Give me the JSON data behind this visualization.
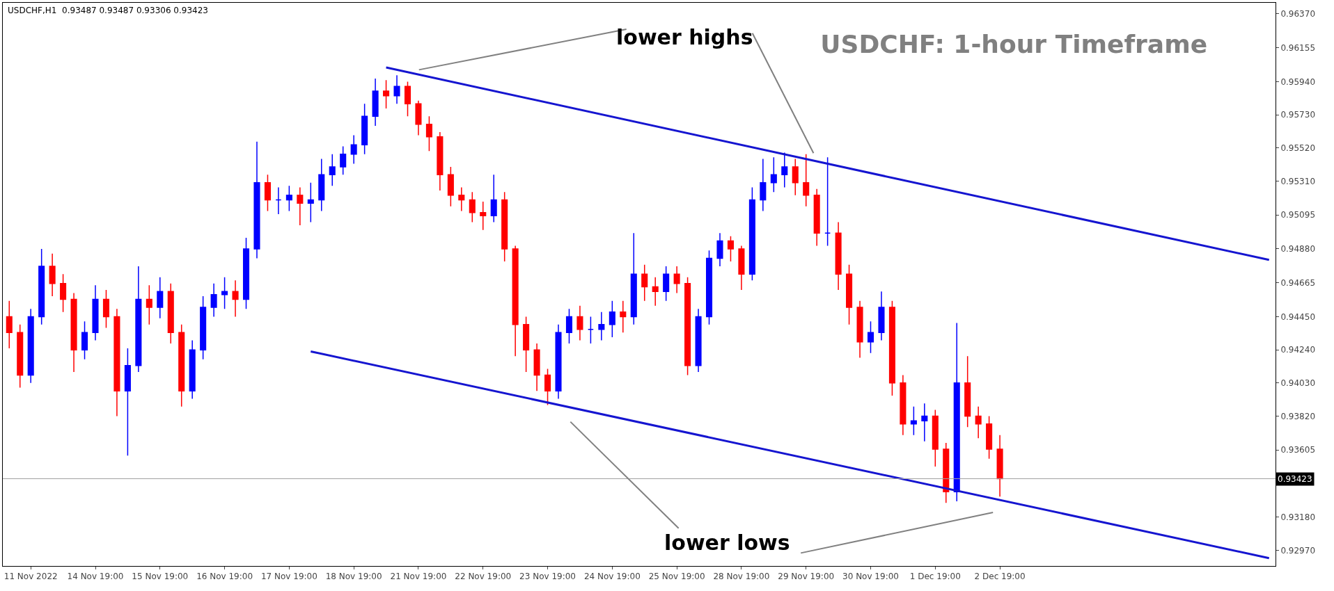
{
  "chart_data": {
    "type": "candlestick",
    "title": "USDCHF: 1-hour Timeframe",
    "subtitle": "USDCHF,H1  0.93487 0.93487 0.93306 0.93423",
    "annotations": [
      "lower highs",
      "lower lows"
    ],
    "categories": [
      null,
      null,
      "11 Nov 2022",
      null,
      null,
      null,
      null,
      null,
      "14 Nov 19:00",
      null,
      null,
      null,
      null,
      null,
      "15 Nov 19:00",
      null,
      null,
      null,
      null,
      null,
      "16 Nov 19:00",
      null,
      null,
      null,
      null,
      null,
      "17 Nov 19:00",
      null,
      null,
      null,
      null,
      null,
      "18 Nov 19:00",
      null,
      null,
      null,
      null,
      null,
      "21 Nov 19:00",
      null,
      null,
      null,
      null,
      null,
      "22 Nov 19:00",
      null,
      null,
      null,
      null,
      null,
      "23 Nov 19:00",
      null,
      null,
      null,
      null,
      null,
      "24 Nov 19:00",
      null,
      null,
      null,
      null,
      null,
      "25 Nov 19:00",
      null,
      null,
      null,
      null,
      null,
      "28 Nov 19:00",
      null,
      null,
      null,
      null,
      null,
      "29 Nov 19:00",
      null,
      null,
      null,
      null,
      null,
      "30 Nov 19:00",
      null,
      null,
      null,
      null,
      null,
      "1 Dec 19:00",
      null,
      null,
      null,
      null,
      null,
      "2 Dec 19:00",
      null,
      null,
      null,
      null,
      null,
      null,
      null,
      null,
      null,
      null,
      null,
      null,
      null,
      null,
      null,
      null,
      null,
      null,
      null,
      null,
      null,
      null,
      null,
      null,
      null
    ],
    "ohlc": [
      [
        0.9445,
        0.9455,
        0.9425,
        0.9435
      ],
      [
        0.9435,
        0.944,
        0.94,
        0.9408
      ],
      [
        0.9408,
        0.945,
        0.9403,
        0.9445
      ],
      [
        0.9445,
        0.9488,
        0.944,
        0.9477
      ],
      [
        0.9477,
        0.9485,
        0.9458,
        0.9466
      ],
      [
        0.9466,
        0.9472,
        0.9448,
        0.9456
      ],
      [
        0.9456,
        0.946,
        0.941,
        0.9424
      ],
      [
        0.9424,
        0.9442,
        0.9418,
        0.9435
      ],
      [
        0.9435,
        0.9465,
        0.943,
        0.9456
      ],
      [
        0.9456,
        0.9462,
        0.9438,
        0.9445
      ],
      [
        0.9445,
        0.945,
        0.9382,
        0.9398
      ],
      [
        0.9398,
        0.9425,
        0.9357,
        0.9414
      ],
      [
        0.9414,
        0.9477,
        0.941,
        0.9456
      ],
      [
        0.9456,
        0.9465,
        0.944,
        0.9451
      ],
      [
        0.9451,
        0.947,
        0.9444,
        0.9461
      ],
      [
        0.9461,
        0.9466,
        0.9428,
        0.9435
      ],
      [
        0.9435,
        0.944,
        0.9388,
        0.9398
      ],
      [
        0.9398,
        0.943,
        0.9393,
        0.9424
      ],
      [
        0.9424,
        0.9458,
        0.9418,
        0.9451
      ],
      [
        0.9451,
        0.9466,
        0.9445,
        0.9459
      ],
      [
        0.9459,
        0.947,
        0.945,
        0.9461
      ],
      [
        0.9461,
        0.9468,
        0.9445,
        0.9456
      ],
      [
        0.9456,
        0.9495,
        0.945,
        0.9488
      ],
      [
        0.9488,
        0.9556,
        0.9482,
        0.953
      ],
      [
        0.953,
        0.9535,
        0.9512,
        0.9519
      ],
      [
        0.9519,
        0.9527,
        0.951,
        0.9519
      ],
      [
        0.9519,
        0.9528,
        0.9512,
        0.9522
      ],
      [
        0.9522,
        0.9527,
        0.9503,
        0.9517
      ],
      [
        0.9517,
        0.953,
        0.9505,
        0.9519
      ],
      [
        0.9519,
        0.9545,
        0.9512,
        0.9535
      ],
      [
        0.9535,
        0.9548,
        0.9528,
        0.954
      ],
      [
        0.954,
        0.9553,
        0.9535,
        0.9548
      ],
      [
        0.9548,
        0.956,
        0.9542,
        0.9554
      ],
      [
        0.9554,
        0.958,
        0.9548,
        0.9572
      ],
      [
        0.9572,
        0.9596,
        0.9566,
        0.9588
      ],
      [
        0.9588,
        0.9595,
        0.9577,
        0.9585
      ],
      [
        0.9585,
        0.9598,
        0.958,
        0.9591
      ],
      [
        0.9591,
        0.9594,
        0.9572,
        0.958
      ],
      [
        0.958,
        0.9582,
        0.956,
        0.9567
      ],
      [
        0.9567,
        0.9572,
        0.955,
        0.9559
      ],
      [
        0.9559,
        0.9562,
        0.9525,
        0.9535
      ],
      [
        0.9535,
        0.954,
        0.9515,
        0.9522
      ],
      [
        0.9522,
        0.9527,
        0.9512,
        0.9519
      ],
      [
        0.9519,
        0.9524,
        0.9505,
        0.9511
      ],
      [
        0.9511,
        0.9518,
        0.95,
        0.9509
      ],
      [
        0.9509,
        0.9535,
        0.9505,
        0.9519
      ],
      [
        0.9519,
        0.9524,
        0.948,
        0.9488
      ],
      [
        0.9488,
        0.949,
        0.942,
        0.944
      ],
      [
        0.944,
        0.9445,
        0.941,
        0.9424
      ],
      [
        0.9424,
        0.9428,
        0.9398,
        0.9408
      ],
      [
        0.9408,
        0.9412,
        0.9389,
        0.9398
      ],
      [
        0.9398,
        0.944,
        0.9393,
        0.9435
      ],
      [
        0.9435,
        0.945,
        0.9428,
        0.9445
      ],
      [
        0.9445,
        0.9452,
        0.943,
        0.9437
      ],
      [
        0.9437,
        0.9445,
        0.9428,
        0.9437
      ],
      [
        0.9437,
        0.9448,
        0.943,
        0.944
      ],
      [
        0.944,
        0.9455,
        0.9432,
        0.9448
      ],
      [
        0.9448,
        0.9455,
        0.9435,
        0.9445
      ],
      [
        0.9445,
        0.9498,
        0.944,
        0.9472
      ],
      [
        0.9472,
        0.9478,
        0.9455,
        0.9464
      ],
      [
        0.9464,
        0.947,
        0.9452,
        0.9461
      ],
      [
        0.9461,
        0.9477,
        0.9455,
        0.9472
      ],
      [
        0.9472,
        0.9477,
        0.946,
        0.9466
      ],
      [
        0.9466,
        0.947,
        0.9408,
        0.9414
      ],
      [
        0.9414,
        0.945,
        0.941,
        0.9445
      ],
      [
        0.9445,
        0.9487,
        0.944,
        0.9482
      ],
      [
        0.9482,
        0.9498,
        0.9477,
        0.9493
      ],
      [
        0.9493,
        0.9496,
        0.948,
        0.9488
      ],
      [
        0.9488,
        0.949,
        0.9462,
        0.9472
      ],
      [
        0.9472,
        0.9527,
        0.9468,
        0.9519
      ],
      [
        0.9519,
        0.9545,
        0.9512,
        0.953
      ],
      [
        0.953,
        0.9546,
        0.9524,
        0.9535
      ],
      [
        0.9535,
        0.9549,
        0.9527,
        0.954
      ],
      [
        0.954,
        0.9545,
        0.9522,
        0.953
      ],
      [
        0.953,
        0.9548,
        0.9515,
        0.9522
      ],
      [
        0.9522,
        0.9526,
        0.949,
        0.9498
      ],
      [
        0.9498,
        0.9546,
        0.949,
        0.9498
      ],
      [
        0.9498,
        0.9505,
        0.9462,
        0.9472
      ],
      [
        0.9472,
        0.9478,
        0.944,
        0.9451
      ],
      [
        0.9451,
        0.9455,
        0.9419,
        0.9429
      ],
      [
        0.9429,
        0.9442,
        0.9422,
        0.9435
      ],
      [
        0.9435,
        0.9461,
        0.943,
        0.9451
      ],
      [
        0.9451,
        0.9455,
        0.9395,
        0.9403
      ],
      [
        0.9403,
        0.9408,
        0.937,
        0.9377
      ],
      [
        0.9377,
        0.9388,
        0.937,
        0.9379
      ],
      [
        0.9379,
        0.939,
        0.9366,
        0.9382
      ],
      [
        0.9382,
        0.9386,
        0.935,
        0.9361
      ],
      [
        0.9361,
        0.9365,
        0.9327,
        0.9334
      ],
      [
        0.9334,
        0.9441,
        0.9328,
        0.9403
      ],
      [
        0.9403,
        0.942,
        0.9375,
        0.9382
      ],
      [
        0.9382,
        0.9388,
        0.9368,
        0.9377
      ],
      [
        0.9377,
        0.9382,
        0.9355,
        0.9361
      ],
      [
        0.9361,
        0.937,
        0.9331,
        0.93423
      ],
      null,
      null,
      null,
      null,
      null,
      null,
      null,
      null,
      null,
      null,
      null,
      null,
      null,
      null,
      null,
      null,
      null,
      null,
      null,
      null,
      null,
      null,
      null,
      null,
      null
    ],
    "colors": [
      "#ff0000",
      "#ff0000",
      "#0000ff",
      "#0000ff",
      "#ff0000",
      "#ff0000",
      "#ff0000",
      "#0000ff",
      "#0000ff",
      "#ff0000",
      "#ff0000",
      "#0000ff",
      "#0000ff",
      "#ff0000",
      "#0000ff",
      "#ff0000",
      "#ff0000",
      "#0000ff",
      "#0000ff",
      "#0000ff",
      "#0000ff",
      "#ff0000",
      "#0000ff",
      "#0000ff",
      "#ff0000",
      "#0000ff",
      "#0000ff",
      "#ff0000",
      "#0000ff",
      "#0000ff",
      "#0000ff",
      "#0000ff",
      "#0000ff",
      "#0000ff",
      "#0000ff",
      "#ff0000",
      "#0000ff",
      "#ff0000",
      "#ff0000",
      "#ff0000",
      "#ff0000",
      "#ff0000",
      "#ff0000",
      "#ff0000",
      "#ff0000",
      "#0000ff",
      "#ff0000",
      "#ff0000",
      "#ff0000",
      "#ff0000",
      "#ff0000",
      "#0000ff",
      "#0000ff",
      "#ff0000",
      "#0000ff",
      "#0000ff",
      "#0000ff",
      "#ff0000",
      "#0000ff",
      "#ff0000",
      "#ff0000",
      "#0000ff",
      "#ff0000",
      "#ff0000",
      "#0000ff",
      "#0000ff",
      "#0000ff",
      "#ff0000",
      "#ff0000",
      "#0000ff",
      "#0000ff",
      "#0000ff",
      "#0000ff",
      "#ff0000",
      "#ff0000",
      "#ff0000",
      "#0000ff",
      "#ff0000",
      "#ff0000",
      "#ff0000",
      "#0000ff",
      "#0000ff",
      "#ff0000",
      "#ff0000",
      "#0000ff",
      "#0000ff",
      "#ff0000",
      "#ff0000",
      "#0000ff",
      "#ff0000",
      "#ff0000",
      "#ff0000",
      "#ff0000",
      null,
      null,
      null,
      null,
      null,
      null,
      null,
      null,
      null,
      null,
      null,
      null,
      null,
      null,
      null,
      null,
      null,
      null,
      null,
      null,
      null,
      null,
      null,
      null,
      null
    ],
    "series": [
      {
        "type": "line",
        "color": "#1515d0",
        "values": [
          null,
          null,
          null,
          null,
          null,
          null,
          null,
          null,
          null,
          null,
          null,
          null,
          null,
          null,
          null,
          null,
          null,
          null,
          null,
          null,
          null,
          null,
          null,
          null,
          null,
          null,
          null,
          null,
          null,
          null,
          null,
          null,
          null,
          null,
          null,
          0.9603,
          null,
          null,
          null,
          null,
          null,
          null,
          null,
          null,
          null,
          null,
          null,
          null,
          null,
          null,
          null,
          null,
          null,
          null,
          null,
          null,
          null,
          null,
          null,
          null,
          null,
          null,
          null,
          null,
          null,
          null,
          null,
          null,
          null,
          null,
          null,
          null,
          null,
          null,
          null,
          null,
          null,
          null,
          null,
          null,
          null,
          null,
          null,
          null,
          null,
          null,
          null,
          null,
          null,
          null,
          null,
          null,
          null,
          null,
          null,
          null,
          null,
          null,
          null,
          null,
          null,
          null,
          null,
          null,
          null,
          null,
          null,
          null,
          null,
          null,
          null,
          null,
          null,
          null,
          null,
          null,
          null,
          0.9481
        ]
      },
      {
        "type": "line",
        "color": "#1515d0",
        "values": [
          null,
          null,
          null,
          null,
          null,
          null,
          null,
          null,
          null,
          null,
          null,
          null,
          null,
          null,
          null,
          null,
          null,
          null,
          null,
          null,
          null,
          null,
          null,
          null,
          null,
          null,
          null,
          null,
          0.9423,
          null,
          null,
          null,
          null,
          null,
          null,
          null,
          null,
          null,
          null,
          null,
          null,
          null,
          null,
          null,
          null,
          null,
          null,
          null,
          null,
          null,
          null,
          null,
          null,
          null,
          null,
          null,
          null,
          null,
          null,
          null,
          null,
          null,
          null,
          null,
          null,
          null,
          null,
          null,
          null,
          null,
          null,
          null,
          null,
          null,
          null,
          null,
          null,
          null,
          null,
          null,
          null,
          null,
          null,
          null,
          null,
          null,
          null,
          null,
          null,
          null,
          null,
          null,
          null,
          null,
          null,
          null,
          null,
          null,
          null,
          null,
          null,
          null,
          null,
          null,
          null,
          null,
          null,
          null,
          null,
          null,
          null,
          null,
          null,
          null,
          null,
          null,
          null,
          0.9292
        ]
      }
    ],
    "ylim": [
      0.9287,
      0.9644
    ],
    "yticks": [
      {
        "value": 0.9297,
        "label": "0.92970"
      },
      {
        "value": 0.9318,
        "label": "0.93180"
      },
      {
        "value": 0.93605,
        "label": "0.93605"
      },
      {
        "value": 0.9382,
        "label": "0.93820"
      },
      {
        "value": 0.9403,
        "label": "0.94030"
      },
      {
        "value": 0.9424,
        "label": "0.94240"
      },
      {
        "value": 0.9445,
        "label": "0.94450"
      },
      {
        "value": 0.94665,
        "label": "0.94665"
      },
      {
        "value": 0.9488,
        "label": "0.94880"
      },
      {
        "value": 0.95095,
        "label": "0.95095"
      },
      {
        "value": 0.9531,
        "label": "0.95310"
      },
      {
        "value": 0.9552,
        "label": "0.95520"
      },
      {
        "value": 0.9573,
        "label": "0.95730"
      },
      {
        "value": 0.9594,
        "label": "0.95940"
      },
      {
        "value": 0.96155,
        "label": "0.96155"
      },
      {
        "value": 0.9637,
        "label": "0.96370"
      }
    ],
    "ref_lines": [
      {
        "axis": "y",
        "value": 0.93423,
        "label": "0.93423",
        "color": "#a0a0a0"
      }
    ],
    "grid": false
  }
}
